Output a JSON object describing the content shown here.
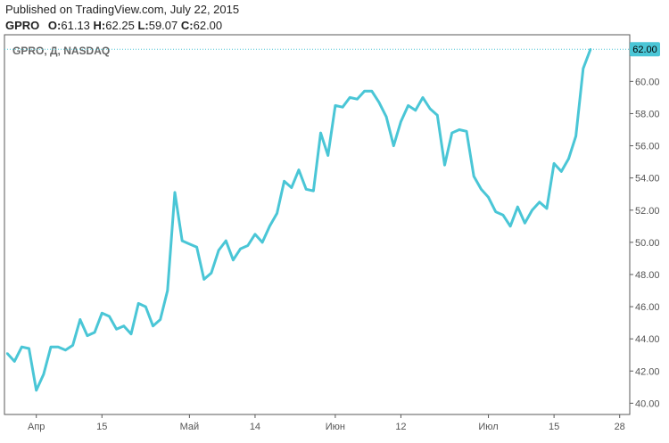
{
  "header": {
    "published": "Published on TradingView.com, July 22, 2015",
    "symbol": "GPRO",
    "open_label": "O:",
    "open": "61.13",
    "high_label": "H:",
    "high": "62.25",
    "low_label": "L:",
    "low": "59.07",
    "close_label": "C:",
    "close": "62.00"
  },
  "chart_data": {
    "type": "line",
    "series_label": "GPRO, Д, NASDAQ",
    "line_color": "#4ac6d6",
    "last_price_label": "62.00",
    "ylim": [
      39.3,
      62.9
    ],
    "y_ticks": [
      40,
      42,
      44,
      46,
      48,
      50,
      52,
      54,
      56,
      58,
      60
    ],
    "y_tick_labels": [
      "40.00",
      "42.00",
      "44.00",
      "46.00",
      "48.00",
      "50.00",
      "52.00",
      "54.00",
      "56.00",
      "58.00",
      "60.00"
    ],
    "x_ticks": [
      {
        "index": 4,
        "label": "Апр"
      },
      {
        "index": 13,
        "label": "15"
      },
      {
        "index": 25,
        "label": "Май"
      },
      {
        "index": 34,
        "label": "14"
      },
      {
        "index": 45,
        "label": "Июн"
      },
      {
        "index": 54,
        "label": "12"
      },
      {
        "index": 66,
        "label": "Июл"
      },
      {
        "index": 75,
        "label": "15"
      },
      {
        "index": 84,
        "label": "28"
      }
    ],
    "series": [
      {
        "values": [
          43.1,
          42.6,
          43.5,
          43.4,
          40.8,
          41.8,
          43.5,
          43.5,
          43.3,
          43.6,
          45.2,
          44.2,
          44.4,
          45.6,
          45.4,
          44.6,
          44.8,
          44.3,
          46.2,
          46.0,
          44.8,
          45.2,
          47.0,
          53.1,
          50.1,
          49.9,
          49.7,
          47.7,
          48.1,
          49.5,
          50.1,
          48.9,
          49.6,
          49.8,
          50.5,
          50.0,
          51.0,
          51.8,
          53.8,
          53.4,
          54.5,
          53.3,
          53.2,
          56.8,
          55.4,
          58.5,
          58.4,
          59.0,
          58.9,
          59.4,
          59.4,
          58.7,
          57.8,
          56.0,
          57.5,
          58.5,
          58.2,
          59.0,
          58.3,
          57.9,
          54.8,
          56.8,
          57.0,
          56.9,
          54.1,
          53.3,
          52.8,
          51.9,
          51.7,
          51.0,
          52.2,
          51.2,
          52.0,
          52.5,
          52.1,
          54.9,
          54.4,
          55.2,
          56.6,
          60.8,
          62.0
        ]
      }
    ]
  }
}
